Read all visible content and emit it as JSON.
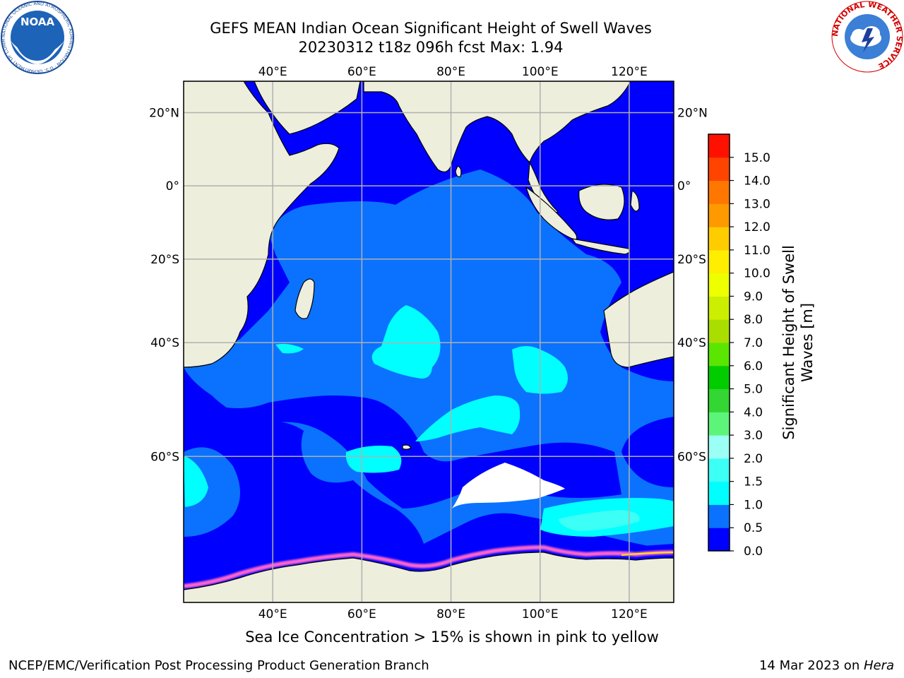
{
  "title": {
    "line1": "GEFS MEAN Indian Ocean Significant Height of Swell Waves",
    "line2": "20230312 t18z 096h fcst   Max: 1.94"
  },
  "map": {
    "lon_ticks": [
      "40°E",
      "60°E",
      "80°E",
      "100°E",
      "120°E"
    ],
    "lon_values": [
      40,
      60,
      80,
      100,
      120
    ],
    "lat_ticks": [
      "20°N",
      "0°",
      "20°S",
      "40°S",
      "60°S"
    ],
    "lat_values": [
      20,
      0,
      -20,
      -40,
      -60
    ],
    "extent": {
      "lon_min": 20,
      "lon_max": 130,
      "lat_min": -75,
      "lat_max": 28
    }
  },
  "colorbar": {
    "label": "Significant Height of Swell Waves [m]",
    "tick_labels": [
      "0.0",
      "0.5",
      "1.0",
      "1.5",
      "2.0",
      "3.0",
      "4.0",
      "5.0",
      "6.0",
      "7.0",
      "8.0",
      "9.0",
      "10.0",
      "11.0",
      "12.0",
      "13.0",
      "14.0",
      "15.0"
    ],
    "colors": [
      "#0000ff",
      "#0a72ff",
      "#00ffff",
      "#3cfff5",
      "#9bfff5",
      "#5cf57a",
      "#33d633",
      "#00cc00",
      "#5ae600",
      "#aadd00",
      "#ccee00",
      "#eeff00",
      "#ffee00",
      "#ffcc00",
      "#ff9900",
      "#ff7700",
      "#ff4400",
      "#ff1100"
    ]
  },
  "land_color": "#eeeedd",
  "ice_color": "#ff66cc",
  "note": "Sea Ice Concentration > 15% is shown in pink to yellow",
  "footer": {
    "left": "NCEP/EMC/Verification Post Processing Product Generation Branch",
    "right_prefix": "14 Mar 2023 on ",
    "right_host": "Hera"
  },
  "logos": {
    "left": "NOAA",
    "left_ring": "NATIONAL OCEANIC AND ATMOSPHERIC ADMINISTRATION · U.S. DEPARTMENT OF COMMERCE",
    "right_ring": "NATIONAL WEATHER SERVICE"
  }
}
